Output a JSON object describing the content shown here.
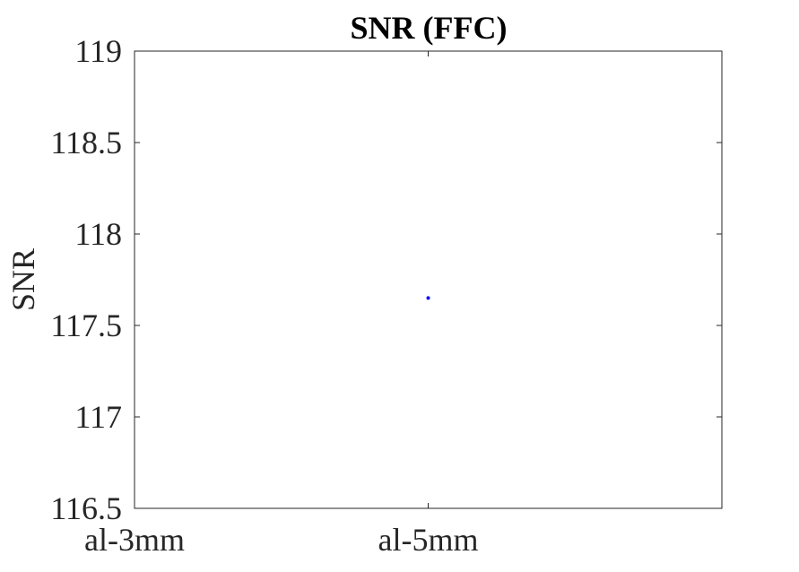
{
  "chart_data": {
    "type": "scatter",
    "title": "SNR (FFC)",
    "xlabel": "",
    "ylabel": "SNR",
    "categories": [
      "al-3mm",
      "al-5mm"
    ],
    "xlim": [
      1,
      3
    ],
    "ylim": [
      116.5,
      119
    ],
    "yticks": [
      "116.5",
      "117",
      "117.5",
      "118",
      "118.5",
      "119"
    ],
    "series": [
      {
        "x": [
          2
        ],
        "y": [
          117.65
        ]
      }
    ],
    "grid": false,
    "colors": {
      "marker": "#0000ff",
      "axes": "#262626"
    }
  }
}
